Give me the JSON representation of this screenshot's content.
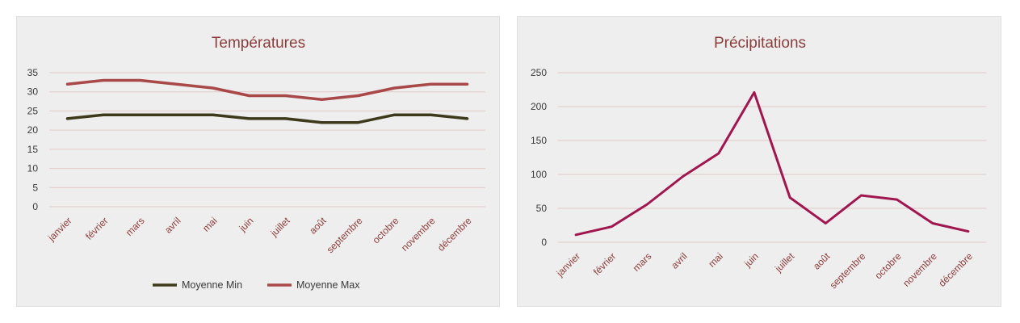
{
  "chart_data": [
    {
      "type": "line",
      "title": "Températures",
      "categories": [
        "janvier",
        "février",
        "mars",
        "avril",
        "mai",
        "juin",
        "juillet",
        "août",
        "septembre",
        "octobre",
        "novembre",
        "décembre"
      ],
      "ylim": [
        0,
        35
      ],
      "yticks": [
        0,
        5,
        10,
        15,
        20,
        25,
        30,
        35
      ],
      "grid": true,
      "legend_position": "bottom",
      "series": [
        {
          "name": "Moyenne Min",
          "color": "#3d3a1c",
          "values": [
            23,
            24,
            24,
            24,
            24,
            23,
            23,
            22,
            22,
            24,
            24,
            23
          ]
        },
        {
          "name": "Moyenne Max",
          "color": "#a84848",
          "values": [
            32,
            33,
            33,
            32,
            31,
            29,
            29,
            28,
            29,
            31,
            32,
            32
          ]
        }
      ]
    },
    {
      "type": "line",
      "title": "Précipitations",
      "categories": [
        "janvier",
        "février",
        "mars",
        "avril",
        "mai",
        "juin",
        "juillet",
        "août",
        "septembre",
        "octobre",
        "novembre",
        "décembre"
      ],
      "ylim": [
        0,
        250
      ],
      "yticks": [
        0,
        50,
        100,
        150,
        200,
        250
      ],
      "grid": true,
      "legend_position": "none",
      "series": [
        {
          "color": "#a0164f",
          "values": [
            11,
            23,
            56,
            97,
            131,
            221,
            66,
            28,
            69,
            63,
            28,
            16
          ]
        }
      ]
    }
  ]
}
